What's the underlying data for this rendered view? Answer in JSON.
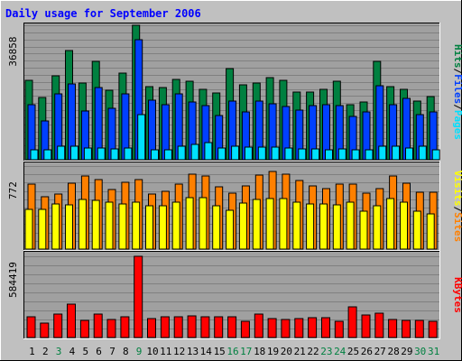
{
  "chart_data": {
    "type": "bar",
    "title": "Daily usage for September 2006",
    "categories": [
      "1",
      "2",
      "3",
      "4",
      "5",
      "6",
      "7",
      "8",
      "9",
      "10",
      "11",
      "12",
      "13",
      "14",
      "15",
      "16",
      "17",
      "18",
      "19",
      "20",
      "21",
      "22",
      "23",
      "24",
      "25",
      "26",
      "27",
      "28",
      "29",
      "30",
      "31"
    ],
    "weekend_days": [
      "3",
      "9",
      "16",
      "17",
      "23",
      "24",
      "30",
      "31"
    ],
    "colors": {
      "background": "#C0C0C0",
      "plot": "#A0A0A0",
      "title": "#0000FF",
      "hits": "#008040",
      "files": "#0040FF",
      "pages": "#00E0FF",
      "visits": "#FFFF00",
      "sites": "#FF8000",
      "kbytes": "#FF0000",
      "weekend_label": "#008040",
      "weekday_label": "#000000"
    },
    "panels": [
      {
        "id": "top",
        "ymax_label": "36858",
        "ymax": 36858,
        "legend": [
          {
            "text": "Pages",
            "color": "#00E0FF"
          },
          {
            "text": "/",
            "color": "#000000"
          },
          {
            "text": "Files",
            "color": "#0040FF"
          },
          {
            "text": "/",
            "color": "#000000"
          },
          {
            "text": "Hits",
            "color": "#008040"
          }
        ],
        "series": [
          {
            "name": "Hits",
            "color": "#008040",
            "values": [
              21800,
              17000,
              23000,
              30000,
              21000,
              27000,
              19000,
              23800,
              36800,
              20000,
              19800,
              22000,
              21600,
              19400,
              18200,
              25000,
              20600,
              21000,
              22600,
              21800,
              18600,
              18600,
              19400,
              21400,
              15000,
              15800,
              27000,
              20000,
              19400,
              16000,
              17400
            ]
          },
          {
            "text_note": "",
            "name": "Files",
            "color": "#0040FF",
            "values": [
              15000,
              10600,
              18000,
              20800,
              13400,
              19800,
              14000,
              18000,
              33000,
              16400,
              15000,
              18000,
              15800,
              14800,
              12200,
              16000,
              13200,
              16000,
              15400,
              14600,
              13600,
              14800,
              15000,
              14800,
              11800,
              13000,
              20200,
              15000,
              16800,
              12400,
              13000
            ]
          },
          {
            "name": "Pages",
            "color": "#00E0FF",
            "values": [
              2800,
              2800,
              3600,
              3600,
              3200,
              3200,
              3000,
              3200,
              12400,
              2800,
              2800,
              3600,
              4200,
              4600,
              3200,
              3600,
              3400,
              3400,
              3400,
              3200,
              3000,
              3000,
              2800,
              3000,
              2600,
              2600,
              3600,
              3600,
              3200,
              3600,
              2800
            ]
          }
        ]
      },
      {
        "id": "middle",
        "ymax_label": "772",
        "ymax": 772,
        "legend": [
          {
            "text": "Sites",
            "color": "#FF8000"
          },
          {
            "text": "/",
            "color": "#000000"
          },
          {
            "text": "Visits",
            "color": "#FFFF00"
          }
        ],
        "series": [
          {
            "name": "Sites",
            "color": "#FF8000",
            "values": [
              600,
              490,
              510,
              610,
              680,
              650,
              550,
              620,
              650,
              510,
              540,
              600,
              700,
              680,
              580,
              520,
              590,
              690,
              720,
              700,
              640,
              590,
              560,
              600,
              600,
              520,
              560,
              680,
              610,
              530,
              530
            ]
          },
          {
            "name": "Visits",
            "color": "#FFFF00",
            "values": [
              370,
              370,
              420,
              410,
              460,
              450,
              440,
              420,
              440,
              400,
              400,
              440,
              480,
              480,
              400,
              360,
              430,
              460,
              470,
              470,
              440,
              420,
              420,
              410,
              440,
              350,
              400,
              470,
              440,
              350,
              330
            ]
          }
        ]
      },
      {
        "id": "bottom",
        "ymax_label": "584419",
        "ymax": 584419,
        "legend": [
          {
            "text": "KBytes",
            "color": "#FF0000"
          }
        ],
        "series": [
          {
            "name": "KBytes",
            "color": "#FF0000",
            "values": [
              147000,
              102000,
              171000,
              241000,
              126000,
              171000,
              132000,
              147000,
              584000,
              137000,
              147000,
              147000,
              156000,
              152000,
              147000,
              152000,
              114000,
              171000,
              137000,
              132000,
              137000,
              141000,
              141000,
              114000,
              221000,
              163000,
              176000,
              132000,
              126000,
              122000,
              117000
            ]
          }
        ]
      }
    ]
  }
}
